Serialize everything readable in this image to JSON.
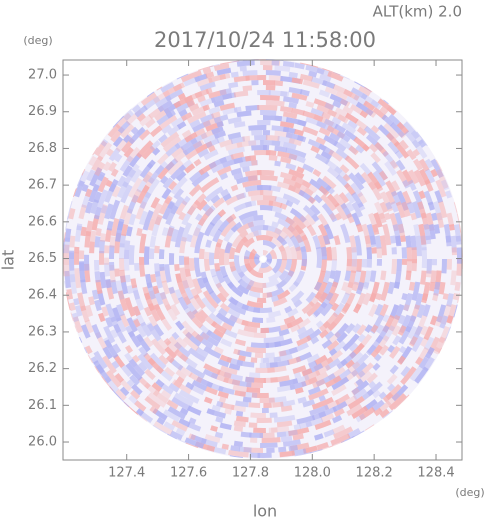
{
  "chart_data": {
    "type": "radar-ppi",
    "title": "2017/10/24 11:58:00",
    "annotation": "ALT(km) 2.0",
    "x_label": "lon",
    "y_label": "lat",
    "x_unit": "(deg)",
    "y_unit": "(deg)",
    "xlim": [
      127.194,
      128.484
    ],
    "ylim": [
      25.951,
      27.041
    ],
    "xticks": [
      127.4,
      127.6,
      127.8,
      {
        "value": 128.0,
        "label": "128.0"
      },
      128.2,
      128.4
    ],
    "yticks": [
      {
        "value": 26.0,
        "label": "26.0"
      },
      26.1,
      26.2,
      26.3,
      26.4,
      26.5,
      26.6,
      26.7,
      26.8,
      26.9,
      {
        "value": 27.0,
        "label": "27.0"
      }
    ]
  }
}
